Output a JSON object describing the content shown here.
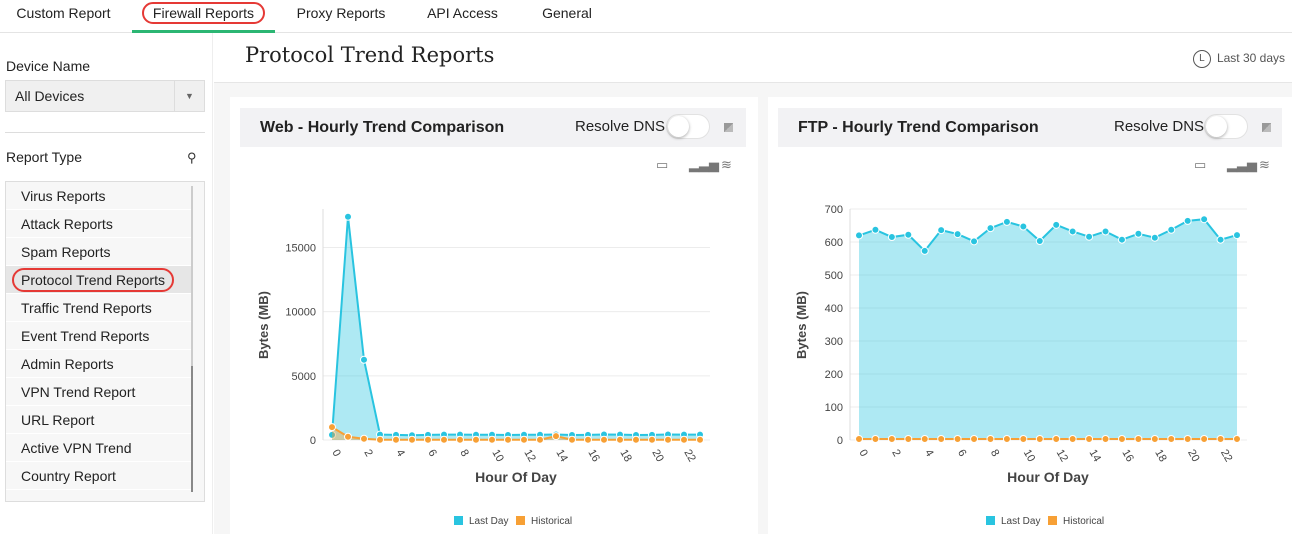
{
  "tabs": [
    {
      "label": "Custom Report"
    },
    {
      "label": "Firewall Reports",
      "active": true
    },
    {
      "label": "Proxy Reports"
    },
    {
      "label": "API Access"
    },
    {
      "label": "General"
    }
  ],
  "sidebar": {
    "device_label": "Device Name",
    "device_value": "All Devices",
    "report_type_label": "Report Type",
    "items": [
      {
        "label": "Virus Reports"
      },
      {
        "label": "Attack Reports"
      },
      {
        "label": "Spam Reports"
      },
      {
        "label": "Protocol Trend Reports",
        "selected": true
      },
      {
        "label": "Traffic Trend Reports"
      },
      {
        "label": "Event Trend Reports"
      },
      {
        "label": "Admin Reports"
      },
      {
        "label": "VPN Trend Report"
      },
      {
        "label": "URL Report"
      },
      {
        "label": "Active VPN Trend"
      },
      {
        "label": "Country Report"
      }
    ]
  },
  "main": {
    "title": "Protocol Trend Reports",
    "period": "Last 30 days",
    "period_icon": "L",
    "resolve_dns": "Resolve DNS",
    "resolve_dns_on": false
  },
  "colors": {
    "accent": "#2bb673",
    "last_day": "#29c4e0",
    "historical": "#f7a035",
    "highlight": "#e53935"
  },
  "chart_data": [
    {
      "type": "area",
      "title": "Web - Hourly Trend Comparison",
      "xlabel": "Hour Of Day",
      "ylabel": "Bytes (MB)",
      "x": [
        0,
        1,
        2,
        3,
        4,
        5,
        6,
        7,
        8,
        9,
        10,
        11,
        12,
        13,
        14,
        15,
        16,
        17,
        18,
        19,
        20,
        21,
        22,
        23
      ],
      "xticks": [
        "0",
        "2",
        "4",
        "6",
        "8",
        "10",
        "12",
        "14",
        "16",
        "18",
        "20",
        "22"
      ],
      "yticks": [
        "0",
        "5000",
        "10000",
        "15000"
      ],
      "ylim": [
        0,
        18000
      ],
      "grid": true,
      "legend": "bottom",
      "series": [
        {
          "name": "Last Day",
          "color": "#29c4e0",
          "values": [
            400,
            17400,
            6250,
            420,
            400,
            370,
            400,
            420,
            420,
            410,
            410,
            390,
            410,
            410,
            430,
            390,
            400,
            430,
            420,
            390,
            400,
            430,
            420,
            420
          ]
        },
        {
          "name": "Historical",
          "color": "#f7a035",
          "values": [
            1000,
            250,
            100,
            20,
            20,
            20,
            20,
            20,
            20,
            20,
            20,
            20,
            20,
            20,
            300,
            20,
            20,
            20,
            20,
            20,
            20,
            20,
            20,
            20
          ]
        }
      ]
    },
    {
      "type": "area",
      "title": "FTP - Hourly Trend Comparison",
      "xlabel": "Hour Of Day",
      "ylabel": "Bytes (MB)",
      "x": [
        0,
        1,
        2,
        3,
        4,
        5,
        6,
        7,
        8,
        9,
        10,
        11,
        12,
        13,
        14,
        15,
        16,
        17,
        18,
        19,
        20,
        21,
        22,
        23
      ],
      "xticks": [
        "0",
        "2",
        "4",
        "6",
        "8",
        "10",
        "12",
        "14",
        "16",
        "18",
        "20",
        "22"
      ],
      "yticks": [
        "0",
        "100",
        "200",
        "300",
        "400",
        "500",
        "600",
        "700"
      ],
      "ylim": [
        0,
        700
      ],
      "grid": true,
      "legend": "bottom",
      "series": [
        {
          "name": "Last Day",
          "color": "#29c4e0",
          "values": [
            620,
            637,
            615,
            622,
            573,
            636,
            624,
            602,
            642,
            661,
            647,
            603,
            652,
            632,
            616,
            632,
            607,
            625,
            613,
            637,
            664,
            669,
            607,
            621
          ]
        },
        {
          "name": "Historical",
          "color": "#f7a035",
          "values": [
            3,
            3,
            3,
            3,
            3,
            3,
            3,
            3,
            3,
            3,
            3,
            3,
            3,
            3,
            3,
            3,
            3,
            3,
            3,
            3,
            3,
            3,
            3,
            3
          ]
        }
      ]
    }
  ]
}
